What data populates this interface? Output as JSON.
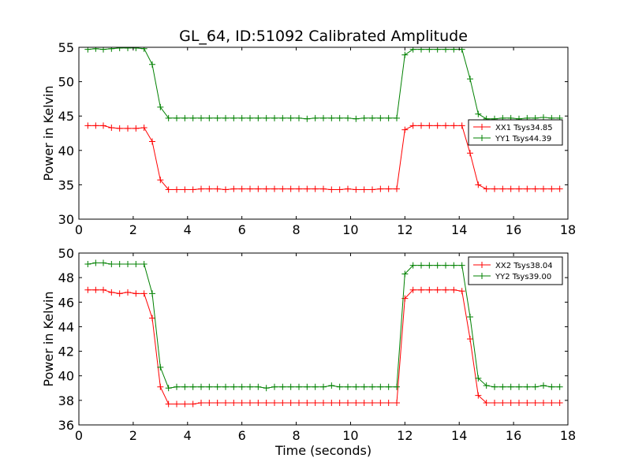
{
  "chart_data": {
    "title": "GL_64, ID:51092 Calibrated Amplitude",
    "type": "line",
    "xlabel": "Time (seconds)",
    "panels": [
      {
        "ylabel": "Power in Kelvin",
        "xlim": [
          0,
          18
        ],
        "ylim": [
          30,
          55
        ],
        "xticks": [
          0,
          2,
          4,
          6,
          8,
          10,
          12,
          14,
          16,
          18
        ],
        "yticks": [
          30,
          35,
          40,
          45,
          50,
          55
        ],
        "legend_position": "center-right",
        "series": [
          {
            "name": "XX1 Tsys34.85",
            "color": "#ff0000",
            "marker": "+",
            "values": [
              [
                0.33,
                43.6
              ],
              [
                0.62,
                43.6
              ],
              [
                0.9,
                43.6
              ],
              [
                1.2,
                43.3
              ],
              [
                1.5,
                43.2
              ],
              [
                1.8,
                43.2
              ],
              [
                2.1,
                43.2
              ],
              [
                2.4,
                43.3
              ],
              [
                2.7,
                41.3
              ],
              [
                3.0,
                35.7
              ],
              [
                3.3,
                34.3
              ],
              [
                3.6,
                34.3
              ],
              [
                3.9,
                34.3
              ],
              [
                4.2,
                34.3
              ],
              [
                4.5,
                34.4
              ],
              [
                4.8,
                34.4
              ],
              [
                5.1,
                34.4
              ],
              [
                5.4,
                34.3
              ],
              [
                5.7,
                34.4
              ],
              [
                6.0,
                34.4
              ],
              [
                6.3,
                34.4
              ],
              [
                6.6,
                34.4
              ],
              [
                6.9,
                34.4
              ],
              [
                7.2,
                34.4
              ],
              [
                7.5,
                34.4
              ],
              [
                7.8,
                34.4
              ],
              [
                8.1,
                34.4
              ],
              [
                8.4,
                34.4
              ],
              [
                8.7,
                34.4
              ],
              [
                9.0,
                34.4
              ],
              [
                9.3,
                34.3
              ],
              [
                9.6,
                34.3
              ],
              [
                9.9,
                34.4
              ],
              [
                10.2,
                34.3
              ],
              [
                10.5,
                34.3
              ],
              [
                10.8,
                34.3
              ],
              [
                11.1,
                34.4
              ],
              [
                11.4,
                34.4
              ],
              [
                11.7,
                34.4
              ],
              [
                12.0,
                43.0
              ],
              [
                12.3,
                43.6
              ],
              [
                12.6,
                43.6
              ],
              [
                12.9,
                43.6
              ],
              [
                13.2,
                43.6
              ],
              [
                13.5,
                43.6
              ],
              [
                13.8,
                43.6
              ],
              [
                14.1,
                43.6
              ],
              [
                14.4,
                39.6
              ],
              [
                14.7,
                35.0
              ],
              [
                15.0,
                34.4
              ],
              [
                15.3,
                34.4
              ],
              [
                15.6,
                34.4
              ],
              [
                15.9,
                34.4
              ],
              [
                16.2,
                34.4
              ],
              [
                16.5,
                34.4
              ],
              [
                16.8,
                34.4
              ],
              [
                17.1,
                34.4
              ],
              [
                17.4,
                34.4
              ],
              [
                17.7,
                34.4
              ]
            ]
          },
          {
            "name": "YY1 Tsys44.39",
            "color": "#008000",
            "marker": "+",
            "values": [
              [
                0.33,
                54.7
              ],
              [
                0.62,
                54.8
              ],
              [
                0.9,
                54.7
              ],
              [
                1.2,
                54.8
              ],
              [
                1.5,
                54.9
              ],
              [
                1.8,
                54.9
              ],
              [
                2.1,
                54.9
              ],
              [
                2.4,
                54.8
              ],
              [
                2.7,
                52.5
              ],
              [
                3.0,
                46.3
              ],
              [
                3.3,
                44.7
              ],
              [
                3.6,
                44.7
              ],
              [
                3.9,
                44.7
              ],
              [
                4.2,
                44.7
              ],
              [
                4.5,
                44.7
              ],
              [
                4.8,
                44.7
              ],
              [
                5.1,
                44.7
              ],
              [
                5.4,
                44.7
              ],
              [
                5.7,
                44.7
              ],
              [
                6.0,
                44.7
              ],
              [
                6.3,
                44.7
              ],
              [
                6.6,
                44.7
              ],
              [
                6.9,
                44.7
              ],
              [
                7.2,
                44.7
              ],
              [
                7.5,
                44.7
              ],
              [
                7.8,
                44.7
              ],
              [
                8.1,
                44.7
              ],
              [
                8.4,
                44.6
              ],
              [
                8.7,
                44.7
              ],
              [
                9.0,
                44.7
              ],
              [
                9.3,
                44.7
              ],
              [
                9.6,
                44.7
              ],
              [
                9.9,
                44.7
              ],
              [
                10.2,
                44.6
              ],
              [
                10.5,
                44.7
              ],
              [
                10.8,
                44.7
              ],
              [
                11.1,
                44.7
              ],
              [
                11.4,
                44.7
              ],
              [
                11.7,
                44.7
              ],
              [
                12.0,
                53.9
              ],
              [
                12.3,
                54.7
              ],
              [
                12.6,
                54.7
              ],
              [
                12.9,
                54.7
              ],
              [
                13.2,
                54.7
              ],
              [
                13.5,
                54.7
              ],
              [
                13.8,
                54.7
              ],
              [
                14.1,
                54.7
              ],
              [
                14.4,
                50.4
              ],
              [
                14.7,
                45.3
              ],
              [
                15.0,
                44.6
              ],
              [
                15.3,
                44.6
              ],
              [
                15.6,
                44.7
              ],
              [
                15.9,
                44.7
              ],
              [
                16.2,
                44.6
              ],
              [
                16.5,
                44.7
              ],
              [
                16.8,
                44.7
              ],
              [
                17.1,
                44.8
              ],
              [
                17.4,
                44.7
              ],
              [
                17.7,
                44.7
              ]
            ]
          }
        ]
      },
      {
        "ylabel": "Power in Kelvin",
        "xlim": [
          0,
          18
        ],
        "ylim": [
          36,
          50
        ],
        "xticks": [
          0,
          2,
          4,
          6,
          8,
          10,
          12,
          14,
          16,
          18
        ],
        "yticks": [
          36,
          38,
          40,
          42,
          44,
          46,
          48,
          50
        ],
        "legend_position": "top-right",
        "series": [
          {
            "name": "XX2 Tsys38.04",
            "color": "#ff0000",
            "marker": "+",
            "values": [
              [
                0.33,
                47.0
              ],
              [
                0.62,
                47.0
              ],
              [
                0.9,
                47.0
              ],
              [
                1.2,
                46.8
              ],
              [
                1.5,
                46.7
              ],
              [
                1.8,
                46.8
              ],
              [
                2.1,
                46.7
              ],
              [
                2.4,
                46.7
              ],
              [
                2.7,
                44.7
              ],
              [
                3.0,
                39.1
              ],
              [
                3.3,
                37.7
              ],
              [
                3.6,
                37.7
              ],
              [
                3.9,
                37.7
              ],
              [
                4.2,
                37.7
              ],
              [
                4.5,
                37.8
              ],
              [
                4.8,
                37.8
              ],
              [
                5.1,
                37.8
              ],
              [
                5.4,
                37.8
              ],
              [
                5.7,
                37.8
              ],
              [
                6.0,
                37.8
              ],
              [
                6.3,
                37.8
              ],
              [
                6.6,
                37.8
              ],
              [
                6.9,
                37.8
              ],
              [
                7.2,
                37.8
              ],
              [
                7.5,
                37.8
              ],
              [
                7.8,
                37.8
              ],
              [
                8.1,
                37.8
              ],
              [
                8.4,
                37.8
              ],
              [
                8.7,
                37.8
              ],
              [
                9.0,
                37.8
              ],
              [
                9.3,
                37.8
              ],
              [
                9.6,
                37.8
              ],
              [
                9.9,
                37.8
              ],
              [
                10.2,
                37.8
              ],
              [
                10.5,
                37.8
              ],
              [
                10.8,
                37.8
              ],
              [
                11.1,
                37.8
              ],
              [
                11.4,
                37.8
              ],
              [
                11.7,
                37.8
              ],
              [
                12.0,
                46.3
              ],
              [
                12.3,
                47.0
              ],
              [
                12.6,
                47.0
              ],
              [
                12.9,
                47.0
              ],
              [
                13.2,
                47.0
              ],
              [
                13.5,
                47.0
              ],
              [
                13.8,
                47.0
              ],
              [
                14.1,
                46.9
              ],
              [
                14.4,
                43.0
              ],
              [
                14.7,
                38.4
              ],
              [
                15.0,
                37.8
              ],
              [
                15.3,
                37.8
              ],
              [
                15.6,
                37.8
              ],
              [
                15.9,
                37.8
              ],
              [
                16.2,
                37.8
              ],
              [
                16.5,
                37.8
              ],
              [
                16.8,
                37.8
              ],
              [
                17.1,
                37.8
              ],
              [
                17.4,
                37.8
              ],
              [
                17.7,
                37.8
              ]
            ]
          },
          {
            "name": "YY2 Tsys39.00",
            "color": "#008000",
            "marker": "+",
            "values": [
              [
                0.33,
                49.1
              ],
              [
                0.62,
                49.2
              ],
              [
                0.9,
                49.2
              ],
              [
                1.2,
                49.1
              ],
              [
                1.5,
                49.1
              ],
              [
                1.8,
                49.1
              ],
              [
                2.1,
                49.1
              ],
              [
                2.4,
                49.1
              ],
              [
                2.7,
                46.7
              ],
              [
                3.0,
                40.7
              ],
              [
                3.3,
                39.0
              ],
              [
                3.6,
                39.1
              ],
              [
                3.9,
                39.1
              ],
              [
                4.2,
                39.1
              ],
              [
                4.5,
                39.1
              ],
              [
                4.8,
                39.1
              ],
              [
                5.1,
                39.1
              ],
              [
                5.4,
                39.1
              ],
              [
                5.7,
                39.1
              ],
              [
                6.0,
                39.1
              ],
              [
                6.3,
                39.1
              ],
              [
                6.6,
                39.1
              ],
              [
                6.9,
                39.0
              ],
              [
                7.2,
                39.1
              ],
              [
                7.5,
                39.1
              ],
              [
                7.8,
                39.1
              ],
              [
                8.1,
                39.1
              ],
              [
                8.4,
                39.1
              ],
              [
                8.7,
                39.1
              ],
              [
                9.0,
                39.1
              ],
              [
                9.3,
                39.2
              ],
              [
                9.6,
                39.1
              ],
              [
                9.9,
                39.1
              ],
              [
                10.2,
                39.1
              ],
              [
                10.5,
                39.1
              ],
              [
                10.8,
                39.1
              ],
              [
                11.1,
                39.1
              ],
              [
                11.4,
                39.1
              ],
              [
                11.7,
                39.1
              ],
              [
                12.0,
                48.3
              ],
              [
                12.3,
                49.0
              ],
              [
                12.6,
                49.0
              ],
              [
                12.9,
                49.0
              ],
              [
                13.2,
                49.0
              ],
              [
                13.5,
                49.0
              ],
              [
                13.8,
                49.0
              ],
              [
                14.1,
                49.0
              ],
              [
                14.4,
                44.8
              ],
              [
                14.7,
                39.8
              ],
              [
                15.0,
                39.2
              ],
              [
                15.3,
                39.1
              ],
              [
                15.6,
                39.1
              ],
              [
                15.9,
                39.1
              ],
              [
                16.2,
                39.1
              ],
              [
                16.5,
                39.1
              ],
              [
                16.8,
                39.1
              ],
              [
                17.1,
                39.2
              ],
              [
                17.4,
                39.1
              ],
              [
                17.7,
                39.1
              ]
            ]
          }
        ]
      }
    ]
  }
}
